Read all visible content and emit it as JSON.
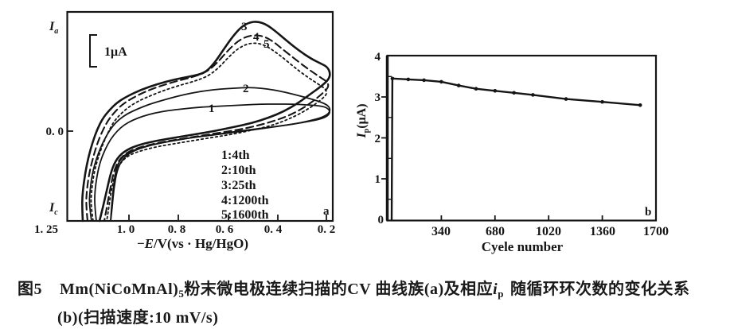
{
  "figure_caption": {
    "line1_prefix": "图5",
    "line1_formula": "Mm(NiCoMnAl)",
    "line1_formula_sub": "5",
    "line1_mid": "粉末微电极连续扫描的CV 曲线族(a)及相应",
    "line1_ip": "i",
    "line1_ip_sub": "p",
    "line1_tail": "随循环环次数的变化关系",
    "line2": "(b)(扫描速度:10 mV/s)"
  },
  "chart_data": {
    "type": "line",
    "ink": "#151515",
    "panel_a": {
      "panel_label": "a",
      "description": "Family of cyclic voltammograms of Mm(NiCoMnAl)5 powder microelectrode under continuous scanning; current axis unlabeled except scale bar 1 uA; anodic peak grows from 4th to 25th cycle then slightly decays by 1200th/1600th cycle",
      "y_axis_top_label": {
        "base": "I",
        "sub": "a"
      },
      "y_axis_zero_label": "0. 0",
      "y_axis_bottom_label": {
        "base": "I",
        "sub": "c"
      },
      "scale_bar_label": "1μA",
      "xlabel_parts": [
        "−",
        "E",
        "/V(vs · Hg/HgO)"
      ],
      "x_tick_labels": [
        "1. 25",
        "1. 0",
        "0. 8",
        "0. 6",
        "0. 4",
        "0. 2"
      ],
      "series": [
        {
          "id": "1",
          "legend": "1:4th",
          "cycle": 4,
          "style": "solid",
          "width": 1.8,
          "dash": "",
          "points": [
            [
              121,
              278
            ],
            [
              119,
              260
            ],
            [
              119,
              242
            ],
            [
              122,
              220
            ],
            [
              126,
              203
            ],
            [
              132,
              188
            ],
            [
              139,
              175
            ],
            [
              147,
              165
            ],
            [
              156,
              157
            ],
            [
              167,
              151
            ],
            [
              180,
              146
            ],
            [
              195,
              142
            ],
            [
              212,
              139
            ],
            [
              230,
              137
            ],
            [
              249,
              135
            ],
            [
              268,
              134
            ],
            [
              288,
              133
            ],
            [
              308,
              132
            ],
            [
              328,
              131
            ],
            [
              348,
              131
            ],
            [
              368,
              131
            ],
            [
              386,
              132
            ],
            [
              400,
              133
            ],
            [
              410,
              135
            ],
            [
              415,
              140
            ],
            [
              412,
              146
            ],
            [
              402,
              150
            ],
            [
              387,
              153
            ],
            [
              369,
              156
            ],
            [
              349,
              159
            ],
            [
              328,
              162
            ],
            [
              306,
              165
            ],
            [
              283,
              168
            ],
            [
              259,
              171
            ],
            [
              235,
              174
            ],
            [
              212,
              178
            ],
            [
              191,
              182
            ],
            [
              173,
              187
            ],
            [
              159,
              193
            ],
            [
              150,
              202
            ],
            [
              145,
              216
            ],
            [
              142,
              240
            ],
            [
              140,
              262
            ],
            [
              139,
              278
            ]
          ]
        },
        {
          "id": "2",
          "legend": "2:10th",
          "cycle": 10,
          "style": "solid",
          "width": 1.8,
          "dash": "",
          "points": [
            [
              115,
              278
            ],
            [
              112,
              258
            ],
            [
              113,
              240
            ],
            [
              116,
              218
            ],
            [
              121,
              200
            ],
            [
              127,
              184
            ],
            [
              134,
              170
            ],
            [
              142,
              158
            ],
            [
              150,
              150
            ],
            [
              160,
              143
            ],
            [
              173,
              137
            ],
            [
              188,
              131
            ],
            [
              205,
              126
            ],
            [
              223,
              121
            ],
            [
              241,
              117
            ],
            [
              259,
              114
            ],
            [
              277,
              112
            ],
            [
              295,
              111
            ],
            [
              312,
              110
            ],
            [
              328,
              111
            ],
            [
              343,
              113
            ],
            [
              358,
              116
            ],
            [
              374,
              120
            ],
            [
              389,
              124
            ],
            [
              402,
              128
            ],
            [
              411,
              132
            ],
            [
              415,
              137
            ],
            [
              413,
              143
            ],
            [
              404,
              148
            ],
            [
              389,
              152
            ],
            [
              370,
              156
            ],
            [
              348,
              159
            ],
            [
              324,
              162
            ],
            [
              299,
              165
            ],
            [
              273,
              169
            ],
            [
              248,
              172
            ],
            [
              224,
              176
            ],
            [
              201,
              180
            ],
            [
              181,
              185
            ],
            [
              165,
              191
            ],
            [
              154,
              200
            ],
            [
              147,
              214
            ],
            [
              143,
              238
            ],
            [
              141,
              260
            ],
            [
              139,
              278
            ]
          ]
        },
        {
          "id": "3",
          "legend": "3:25th",
          "cycle": 25,
          "style": "solid",
          "width": 2.6,
          "dash": "",
          "points": [
            [
              104,
              278
            ],
            [
              103,
              258
            ],
            [
              104,
              240
            ],
            [
              107,
              218
            ],
            [
              111,
              198
            ],
            [
              116,
              180
            ],
            [
              122,
              163
            ],
            [
              129,
              149
            ],
            [
              137,
              139
            ],
            [
              147,
              129
            ],
            [
              160,
              121
            ],
            [
              177,
              113
            ],
            [
              197,
              106
            ],
            [
              219,
              100
            ],
            [
              240,
              96
            ],
            [
              257,
              92
            ],
            [
              269,
              80
            ],
            [
              281,
              62
            ],
            [
              293,
              45
            ],
            [
              304,
              33
            ],
            [
              314,
              28
            ],
            [
              324,
              27
            ],
            [
              335,
              31
            ],
            [
              347,
              40
            ],
            [
              361,
              52
            ],
            [
              376,
              64
            ],
            [
              391,
              74
            ],
            [
              403,
              80
            ],
            [
              411,
              84
            ],
            [
              415,
              92
            ],
            [
              413,
              100
            ],
            [
              403,
              109
            ],
            [
              389,
              119
            ],
            [
              374,
              130
            ],
            [
              357,
              140
            ],
            [
              338,
              148
            ],
            [
              316,
              155
            ],
            [
              293,
              160
            ],
            [
              269,
              165
            ],
            [
              245,
              169
            ],
            [
              221,
              173
            ],
            [
              197,
              177
            ],
            [
              175,
              182
            ],
            [
              158,
              189
            ],
            [
              147,
              199
            ],
            [
              140,
              214
            ],
            [
              134,
              240
            ],
            [
              129,
              262
            ],
            [
              125,
              278
            ]
          ]
        },
        {
          "id": "4",
          "legend": "4:1200th",
          "cycle": 1200,
          "style": "dashed",
          "width": 2.1,
          "dash": "9 5",
          "points": [
            [
              110,
              278
            ],
            [
              108,
              258
            ],
            [
              109,
              240
            ],
            [
              112,
              218
            ],
            [
              117,
              198
            ],
            [
              122,
              181
            ],
            [
              129,
              164
            ],
            [
              136,
              151
            ],
            [
              144,
              141
            ],
            [
              154,
              131
            ],
            [
              167,
              123
            ],
            [
              183,
              115
            ],
            [
              202,
              108
            ],
            [
              222,
              102
            ],
            [
              242,
              97
            ],
            [
              259,
              91
            ],
            [
              272,
              80
            ],
            [
              285,
              65
            ],
            [
              297,
              53
            ],
            [
              309,
              46
            ],
            [
              321,
              44
            ],
            [
              332,
              46
            ],
            [
              343,
              52
            ],
            [
              355,
              62
            ],
            [
              369,
              73
            ],
            [
              383,
              84
            ],
            [
              396,
              93
            ],
            [
              405,
              99
            ],
            [
              411,
              103
            ],
            [
              413,
              109
            ],
            [
              407,
              116
            ],
            [
              395,
              126
            ],
            [
              381,
              136
            ],
            [
              364,
              145
            ],
            [
              345,
              152
            ],
            [
              324,
              158
            ],
            [
              301,
              163
            ],
            [
              276,
              167
            ],
            [
              251,
              171
            ],
            [
              226,
              175
            ],
            [
              202,
              179
            ],
            [
              180,
              184
            ],
            [
              162,
              190
            ],
            [
              150,
              200
            ],
            [
              143,
              215
            ],
            [
              138,
              240
            ],
            [
              134,
              262
            ],
            [
              131,
              278
            ]
          ]
        },
        {
          "id": "5",
          "legend": "5:1600th",
          "cycle": 1600,
          "style": "dotted",
          "width": 1.8,
          "dash": "2.5 3.5",
          "points": [
            [
              117,
              278
            ],
            [
              114,
              258
            ],
            [
              115,
              240
            ],
            [
              118,
              218
            ],
            [
              123,
              199
            ],
            [
              129,
              182
            ],
            [
              136,
              166
            ],
            [
              143,
              153
            ],
            [
              151,
              144
            ],
            [
              161,
              135
            ],
            [
              174,
              127
            ],
            [
              190,
              120
            ],
            [
              208,
              113
            ],
            [
              227,
              107
            ],
            [
              245,
              102
            ],
            [
              261,
              96
            ],
            [
              274,
              86
            ],
            [
              287,
              72
            ],
            [
              299,
              61
            ],
            [
              311,
              55
            ],
            [
              322,
              54
            ],
            [
              333,
              57
            ],
            [
              344,
              64
            ],
            [
              356,
              73
            ],
            [
              369,
              84
            ],
            [
              382,
              94
            ],
            [
              394,
              102
            ],
            [
              403,
              108
            ],
            [
              409,
              112
            ],
            [
              411,
              118
            ],
            [
              404,
              125
            ],
            [
              392,
              134
            ],
            [
              377,
              143
            ],
            [
              360,
              151
            ],
            [
              341,
              158
            ],
            [
              320,
              163
            ],
            [
              297,
              168
            ],
            [
              273,
              172
            ],
            [
              248,
              176
            ],
            [
              224,
              180
            ],
            [
              200,
              184
            ],
            [
              179,
              189
            ],
            [
              162,
              195
            ],
            [
              151,
              205
            ],
            [
              144,
              220
            ],
            [
              139,
              244
            ],
            [
              136,
              266
            ],
            [
              134,
              278
            ]
          ]
        }
      ]
    },
    "panel_b": {
      "panel_label": "b",
      "ylabel": {
        "base": "I",
        "sub": "p",
        "units": "(μA)"
      },
      "xlabel": "Cyele number",
      "ylim": [
        0,
        4
      ],
      "xlim": [
        0,
        1700
      ],
      "y_ticks": [
        0,
        1,
        2,
        3,
        4
      ],
      "x_ticks": [
        340,
        680,
        1020,
        1360,
        1700
      ],
      "points": [
        [
          25,
          0
        ],
        [
          30,
          3.45
        ],
        [
          130,
          3.43
        ],
        [
          230,
          3.41
        ],
        [
          340,
          3.37
        ],
        [
          450,
          3.28
        ],
        [
          560,
          3.2
        ],
        [
          680,
          3.15
        ],
        [
          800,
          3.1
        ],
        [
          920,
          3.05
        ],
        [
          1130,
          2.95
        ],
        [
          1360,
          2.88
        ],
        [
          1600,
          2.8
        ]
      ]
    }
  }
}
